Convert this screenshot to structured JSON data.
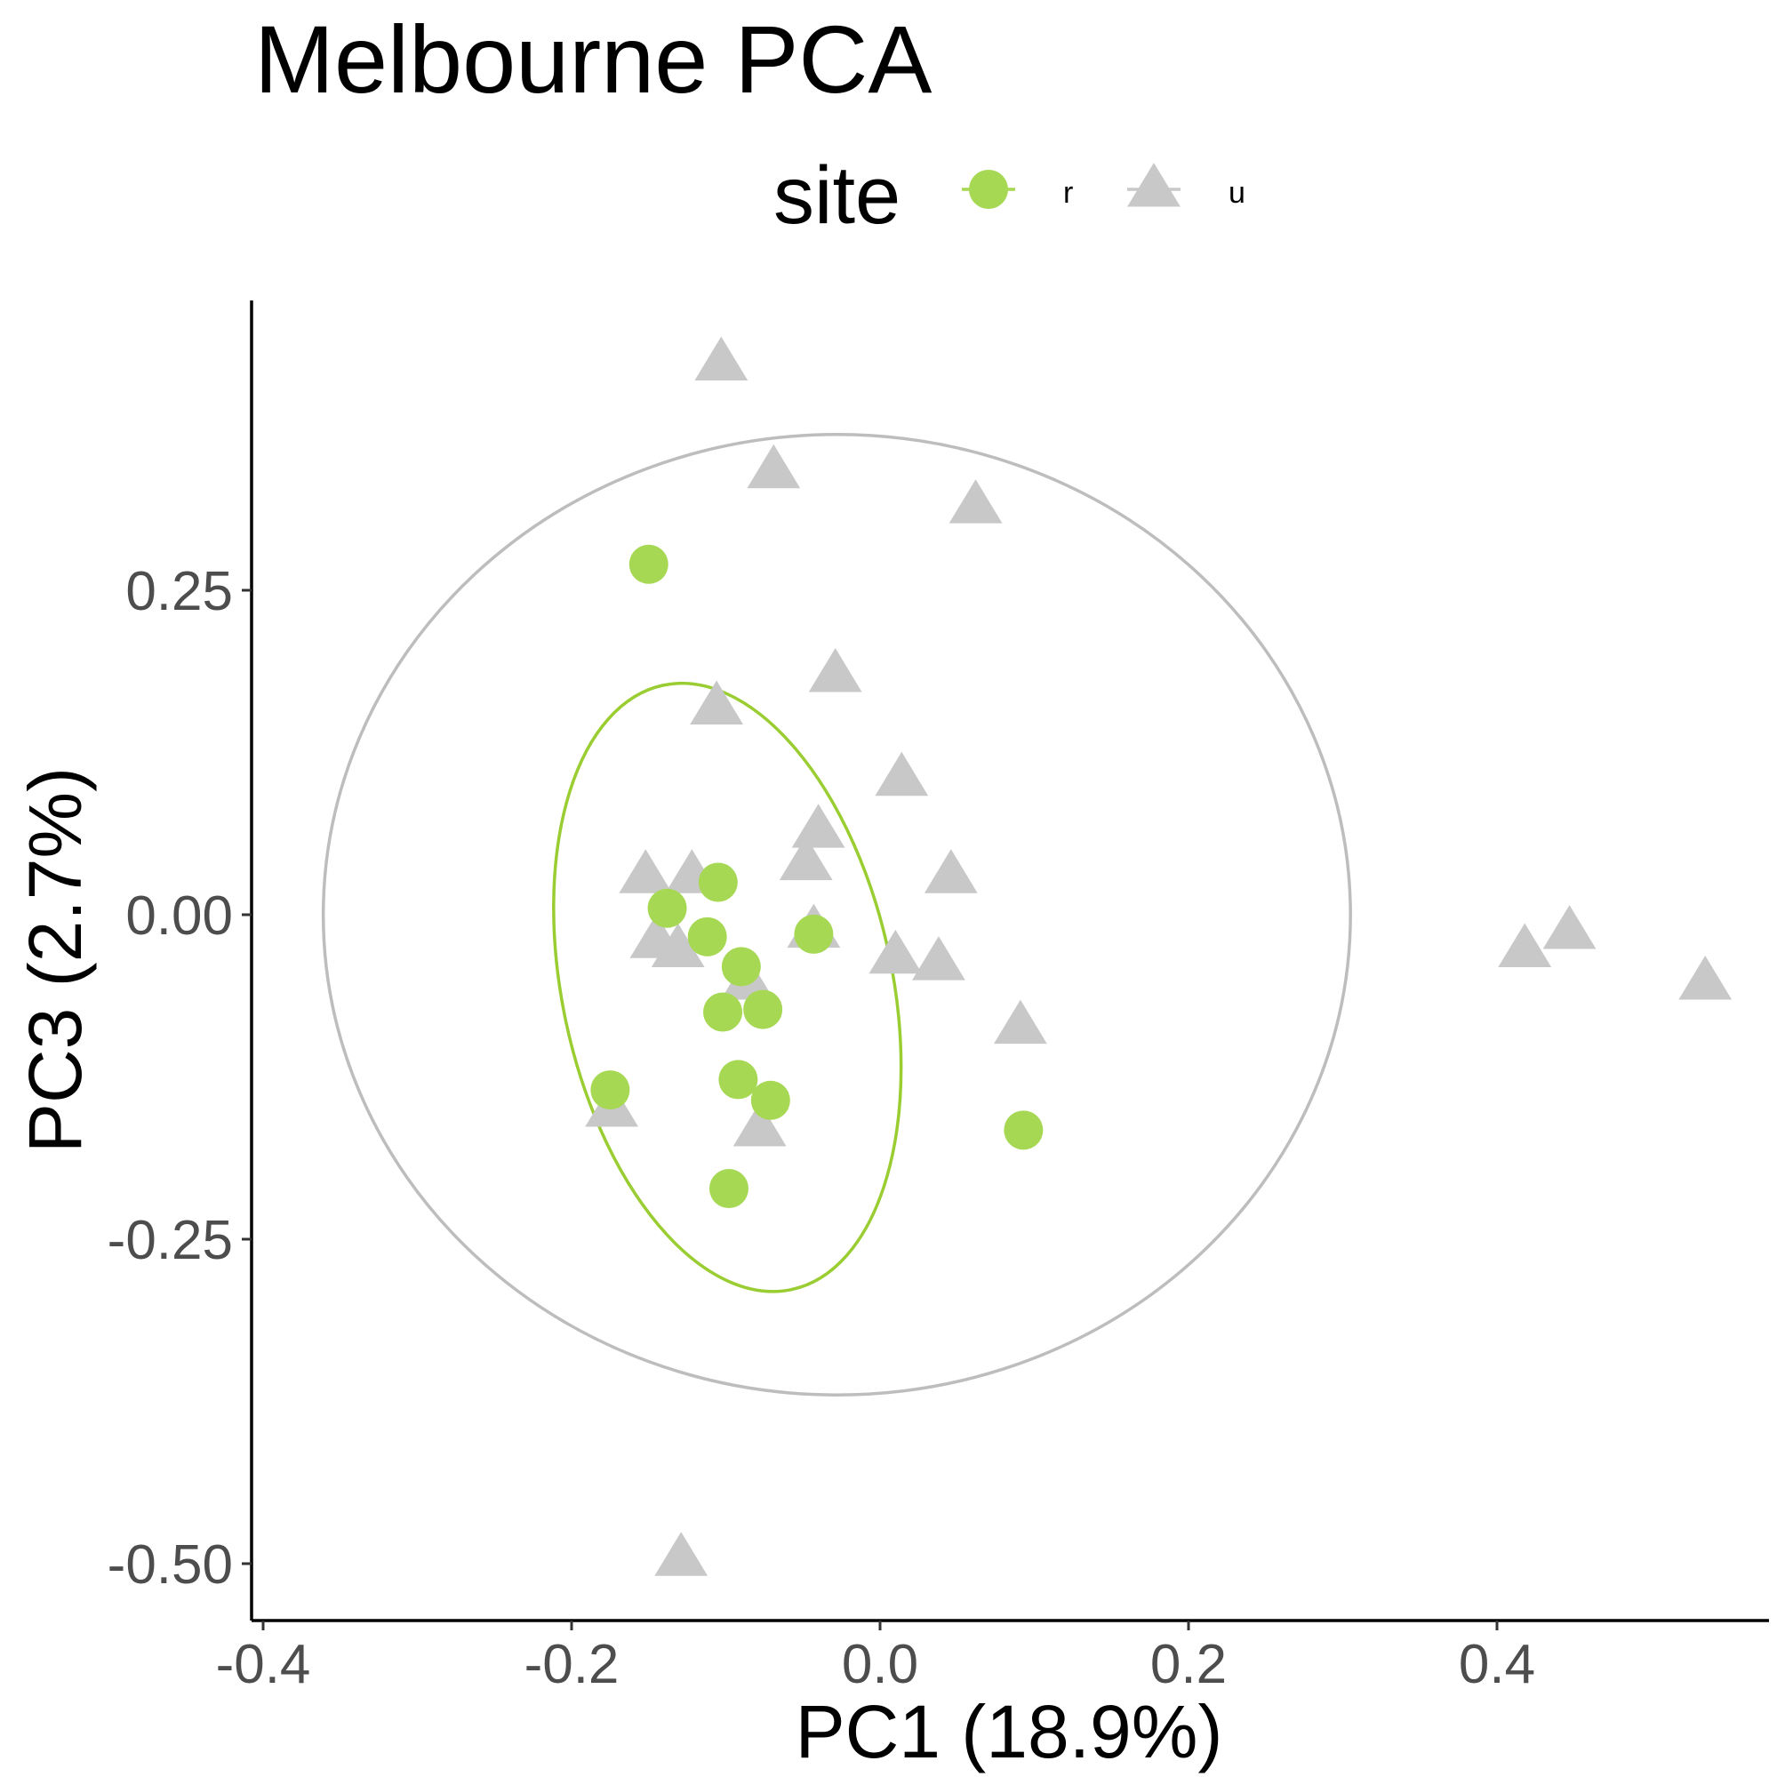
{
  "title": "Melbourne PCA",
  "legend": {
    "title": "site",
    "items": [
      {
        "label": "r",
        "shape": "circle",
        "color": "#a6d854"
      },
      {
        "label": "u",
        "shape": "triangle",
        "color": "#c8c8c8"
      }
    ]
  },
  "chart_data": {
    "type": "scatter",
    "title": "Melbourne PCA",
    "xlabel": "PC1 (18.9%)",
    "ylabel": "PC3 (2.7%)",
    "xlim": [
      -0.4,
      0.58
    ],
    "ylim": [
      -0.54,
      0.44
    ],
    "xticks": [
      -0.4,
      -0.2,
      0.0,
      0.2,
      0.4
    ],
    "xtick_labels": [
      "-0.4",
      "-0.2",
      "0.0",
      "0.2",
      "0.4"
    ],
    "yticks": [
      -0.5,
      -0.25,
      0.0,
      0.25
    ],
    "ytick_labels": [
      "-0.50",
      "-0.25",
      "0.00",
      "0.25"
    ],
    "grid": false,
    "legend_position": "top",
    "series": [
      {
        "name": "r",
        "marker": "circle",
        "color": "#a6d854",
        "points": [
          {
            "x": -0.15,
            "y": 0.27
          },
          {
            "x": -0.138,
            "y": 0.005
          },
          {
            "x": -0.105,
            "y": 0.025
          },
          {
            "x": -0.112,
            "y": -0.017
          },
          {
            "x": -0.09,
            "y": -0.04
          },
          {
            "x": -0.043,
            "y": -0.015
          },
          {
            "x": -0.102,
            "y": -0.075
          },
          {
            "x": -0.076,
            "y": -0.073
          },
          {
            "x": -0.175,
            "y": -0.135
          },
          {
            "x": -0.092,
            "y": -0.127
          },
          {
            "x": -0.071,
            "y": -0.143
          },
          {
            "x": 0.093,
            "y": -0.166
          },
          {
            "x": -0.098,
            "y": -0.211
          }
        ]
      },
      {
        "name": "u",
        "marker": "triangle",
        "color": "#c8c8c8",
        "points": [
          {
            "x": -0.103,
            "y": 0.425
          },
          {
            "x": -0.069,
            "y": 0.342
          },
          {
            "x": 0.062,
            "y": 0.315
          },
          {
            "x": -0.029,
            "y": 0.185
          },
          {
            "x": -0.106,
            "y": 0.16
          },
          {
            "x": 0.014,
            "y": 0.105
          },
          {
            "x": -0.04,
            "y": 0.065
          },
          {
            "x": -0.048,
            "y": 0.04
          },
          {
            "x": -0.152,
            "y": 0.03
          },
          {
            "x": -0.122,
            "y": 0.03
          },
          {
            "x": 0.046,
            "y": 0.03
          },
          {
            "x": -0.043,
            "y": -0.012
          },
          {
            "x": -0.145,
            "y": -0.02
          },
          {
            "x": -0.131,
            "y": -0.027
          },
          {
            "x": 0.01,
            "y": -0.032
          },
          {
            "x": 0.038,
            "y": -0.037
          },
          {
            "x": -0.086,
            "y": -0.052
          },
          {
            "x": 0.091,
            "y": -0.086
          },
          {
            "x": -0.174,
            "y": -0.15
          },
          {
            "x": -0.078,
            "y": -0.165
          },
          {
            "x": -0.129,
            "y": -0.496
          },
          {
            "x": 0.418,
            "y": -0.027
          },
          {
            "x": 0.447,
            "y": -0.013
          },
          {
            "x": 0.535,
            "y": -0.052
          }
        ]
      }
    ],
    "ellipses": [
      {
        "series": "r",
        "color": "#9acd32",
        "cx": -0.099,
        "cy": -0.056,
        "rx": 0.107,
        "ry": 0.238,
        "rotation_deg": 12
      },
      {
        "series": "u",
        "color": "#bdbdbd",
        "cx": -0.028,
        "cy": 0.0,
        "rx": 0.333,
        "ry": 0.37,
        "rotation_deg": 0
      }
    ]
  }
}
